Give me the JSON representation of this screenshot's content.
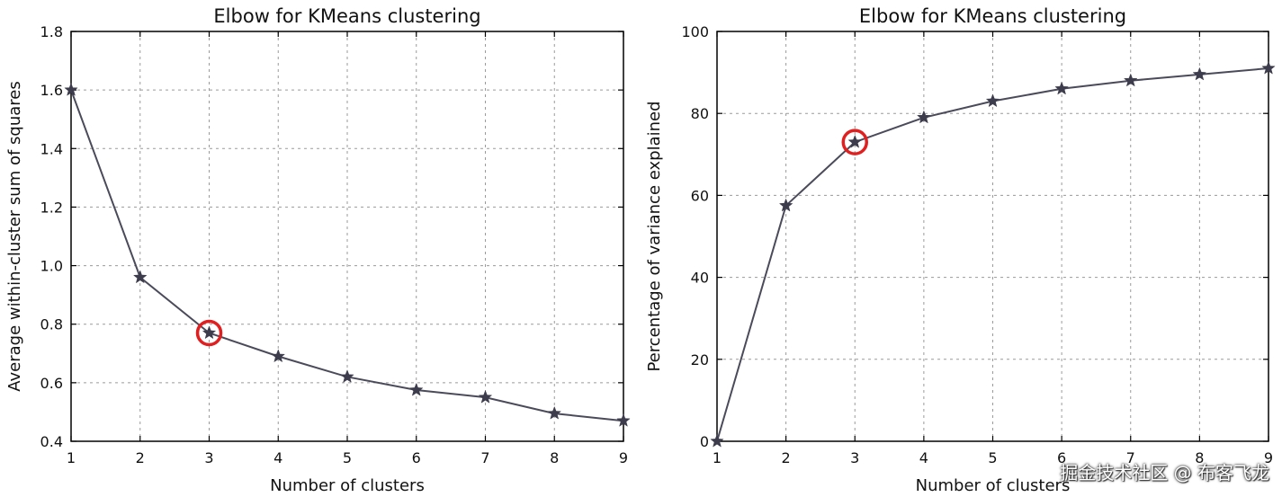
{
  "chart_data": [
    {
      "type": "line",
      "title": "Elbow for KMeans clustering",
      "xlabel": "Number of clusters",
      "ylabel": "Average within-cluster sum of squares",
      "x": [
        1,
        2,
        3,
        4,
        5,
        6,
        7,
        8,
        9
      ],
      "series": [
        {
          "values": [
            1.6,
            0.96,
            0.77,
            0.69,
            0.62,
            0.575,
            0.55,
            0.495,
            0.47
          ]
        }
      ],
      "xlim": [
        1,
        9
      ],
      "ylim": [
        0.4,
        1.8
      ],
      "xticks": [
        "1",
        "2",
        "3",
        "4",
        "5",
        "6",
        "7",
        "8",
        "9"
      ],
      "yticks": [
        "0.4",
        "0.6",
        "0.8",
        "1.0",
        "1.2",
        "1.4",
        "1.6",
        "1.8"
      ],
      "grid": true,
      "marker": "star",
      "highlight_x": 3,
      "highlight_color": "#e02020",
      "line_color": "#4a4a5a"
    },
    {
      "type": "line",
      "title": "Elbow for KMeans clustering",
      "xlabel": "Number of clusters",
      "ylabel": "Percentage of variance explained",
      "x": [
        1,
        2,
        3,
        4,
        5,
        6,
        7,
        8,
        9
      ],
      "series": [
        {
          "values": [
            0,
            57.5,
            73,
            79,
            83,
            86,
            88,
            89.5,
            91
          ]
        }
      ],
      "xlim": [
        1,
        9
      ],
      "ylim": [
        0,
        100
      ],
      "xticks": [
        "1",
        "2",
        "3",
        "4",
        "5",
        "6",
        "7",
        "8",
        "9"
      ],
      "yticks": [
        "0",
        "20",
        "40",
        "60",
        "80",
        "100"
      ],
      "grid": true,
      "marker": "star",
      "highlight_x": 3,
      "highlight_color": "#e02020",
      "line_color": "#4a4a5a"
    }
  ],
  "watermark": "掘金技术社区 @ 布客飞龙"
}
